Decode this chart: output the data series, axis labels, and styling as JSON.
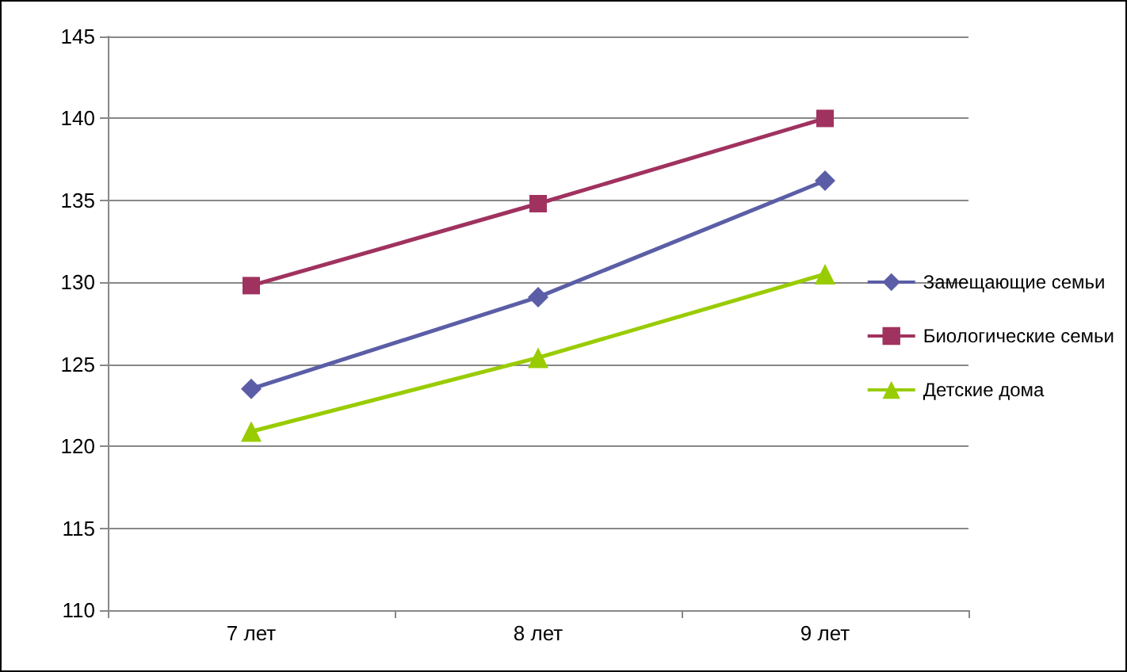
{
  "chart_data": {
    "type": "line",
    "categories": [
      "7 лет",
      "8 лет",
      "9 лет"
    ],
    "series": [
      {
        "name": "Замещающие семьи",
        "color": "#5b5ea6",
        "marker": "diamond",
        "values": [
          123.5,
          129.1,
          136.2
        ]
      },
      {
        "name": "Биологические семьи",
        "color": "#a0325f",
        "marker": "square",
        "values": [
          129.8,
          134.8,
          140
        ]
      },
      {
        "name": "Детские дома",
        "color": "#99cc00",
        "marker": "triangle",
        "values": [
          120.9,
          125.4,
          130.5
        ]
      }
    ],
    "ylim": [
      110,
      145
    ],
    "yticks": [
      110,
      115,
      120,
      125,
      130,
      135,
      140,
      145
    ],
    "grid": "y",
    "legend": "right"
  }
}
